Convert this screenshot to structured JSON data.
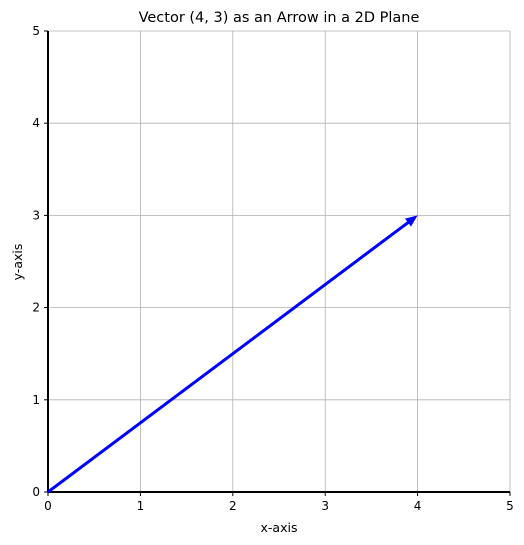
{
  "chart_data": {
    "type": "line",
    "title": "Vector (4, 3) as an Arrow in a 2D Plane",
    "xlabel": "x-axis",
    "ylabel": "y-axis",
    "xlim": [
      0,
      5
    ],
    "ylim": [
      0,
      5
    ],
    "xticks": [
      "0",
      "1",
      "2",
      "3",
      "4",
      "5"
    ],
    "yticks": [
      "0",
      "1",
      "2",
      "3",
      "4",
      "5"
    ],
    "grid": true,
    "vector": {
      "start": [
        0,
        0
      ],
      "end": [
        4,
        3
      ],
      "color": "#0000ff"
    }
  }
}
